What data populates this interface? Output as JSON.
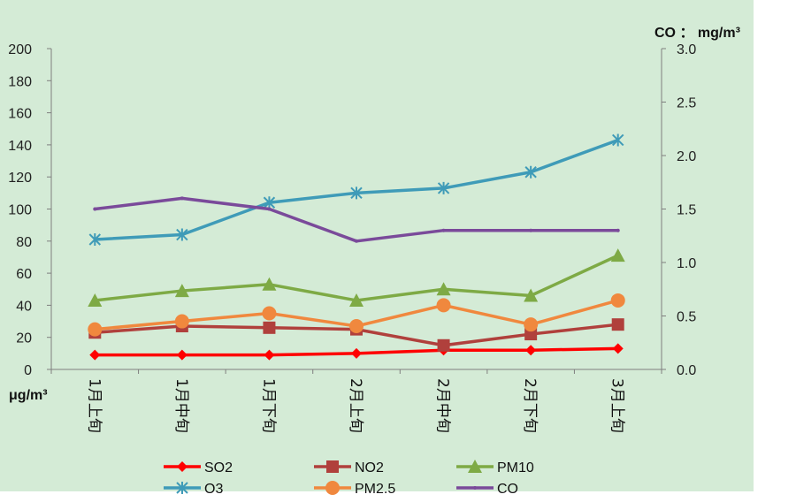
{
  "chart_data": {
    "type": "line",
    "categories": [
      "1月上旬",
      "1月中旬",
      "1月下旬",
      "2月上旬",
      "2月中旬",
      "2月下旬",
      "3月上旬"
    ],
    "left_axis": {
      "unit_label": "μg/m³",
      "min": 0,
      "max": 200,
      "step": 20,
      "tick_labels": [
        "0",
        "20",
        "40",
        "60",
        "80",
        "100",
        "120",
        "140",
        "160",
        "180",
        "200"
      ]
    },
    "right_axis": {
      "unit_label": "CO ： mg/m³",
      "min": 0,
      "max": 3.0,
      "step": 0.5,
      "tick_labels": [
        "0.0",
        "0.5",
        "1.0",
        "1.5",
        "2.0",
        "2.5",
        "3.0"
      ]
    },
    "series": [
      {
        "name": "SO2",
        "axis": "left",
        "color": "#ff0000",
        "marker": "diamond",
        "values": [
          9,
          9,
          9,
          10,
          12,
          12,
          13
        ]
      },
      {
        "name": "NO2",
        "axis": "left",
        "color": "#b0403c",
        "marker": "square",
        "values": [
          23,
          27,
          26,
          25,
          15,
          22,
          28
        ]
      },
      {
        "name": "PM10",
        "axis": "left",
        "color": "#7eaa45",
        "marker": "triangle",
        "values": [
          43,
          49,
          53,
          43,
          50,
          46,
          71
        ]
      },
      {
        "name": "O3",
        "axis": "left",
        "color": "#3f9bb8",
        "marker": "star",
        "values": [
          81,
          84,
          104,
          110,
          113,
          123,
          143
        ]
      },
      {
        "name": "PM2.5",
        "axis": "left",
        "color": "#f0883e",
        "marker": "circle",
        "values": [
          25,
          30,
          35,
          27,
          40,
          28,
          43
        ]
      },
      {
        "name": "CO",
        "axis": "right",
        "color": "#7a4a9a",
        "marker": "none",
        "values": [
          1.5,
          1.6,
          1.5,
          1.2,
          1.3,
          1.3,
          1.3
        ]
      }
    ],
    "legend_position": "bottom",
    "grid": false,
    "background": "#d4ebd6"
  }
}
